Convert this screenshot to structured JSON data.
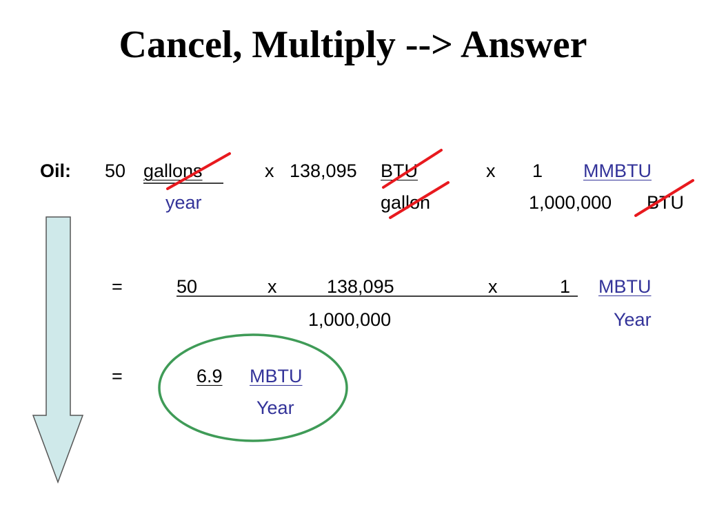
{
  "slide": {
    "title": "Cancel, Multiply --> Answer",
    "row1": {
      "label": "Oil:",
      "quantity": "50",
      "unit1_num": "gallons",
      "unit1_den": "year",
      "times1": "x",
      "factor2": "138,095",
      "unit2_num": "BTU",
      "unit2_den": "gallon",
      "times2": "x",
      "factor3_num": "1",
      "unit3_num": "MMBTU",
      "factor3_den": "1,000,000",
      "unit3_den": "BTU"
    },
    "row2": {
      "equals": "=",
      "num_a": "50",
      "times_a": "x",
      "num_b": "138,095",
      "times_b": "x",
      "num_c": "1",
      "unit_num": "MBTU",
      "denominator": "1,000,000",
      "unit_den": "Year"
    },
    "row3": {
      "equals": "=",
      "result": "6.9",
      "unit_num": "MBTU",
      "unit_den": "Year"
    },
    "colors": {
      "unit_blue": "#333399",
      "cancel_red": "#e8191e",
      "circle_green": "#3f9b57",
      "arrow_fill": "#cfe9ea"
    },
    "icons": [
      "down-arrow-icon",
      "strike-mark-icon",
      "answer-circle-icon"
    ]
  }
}
